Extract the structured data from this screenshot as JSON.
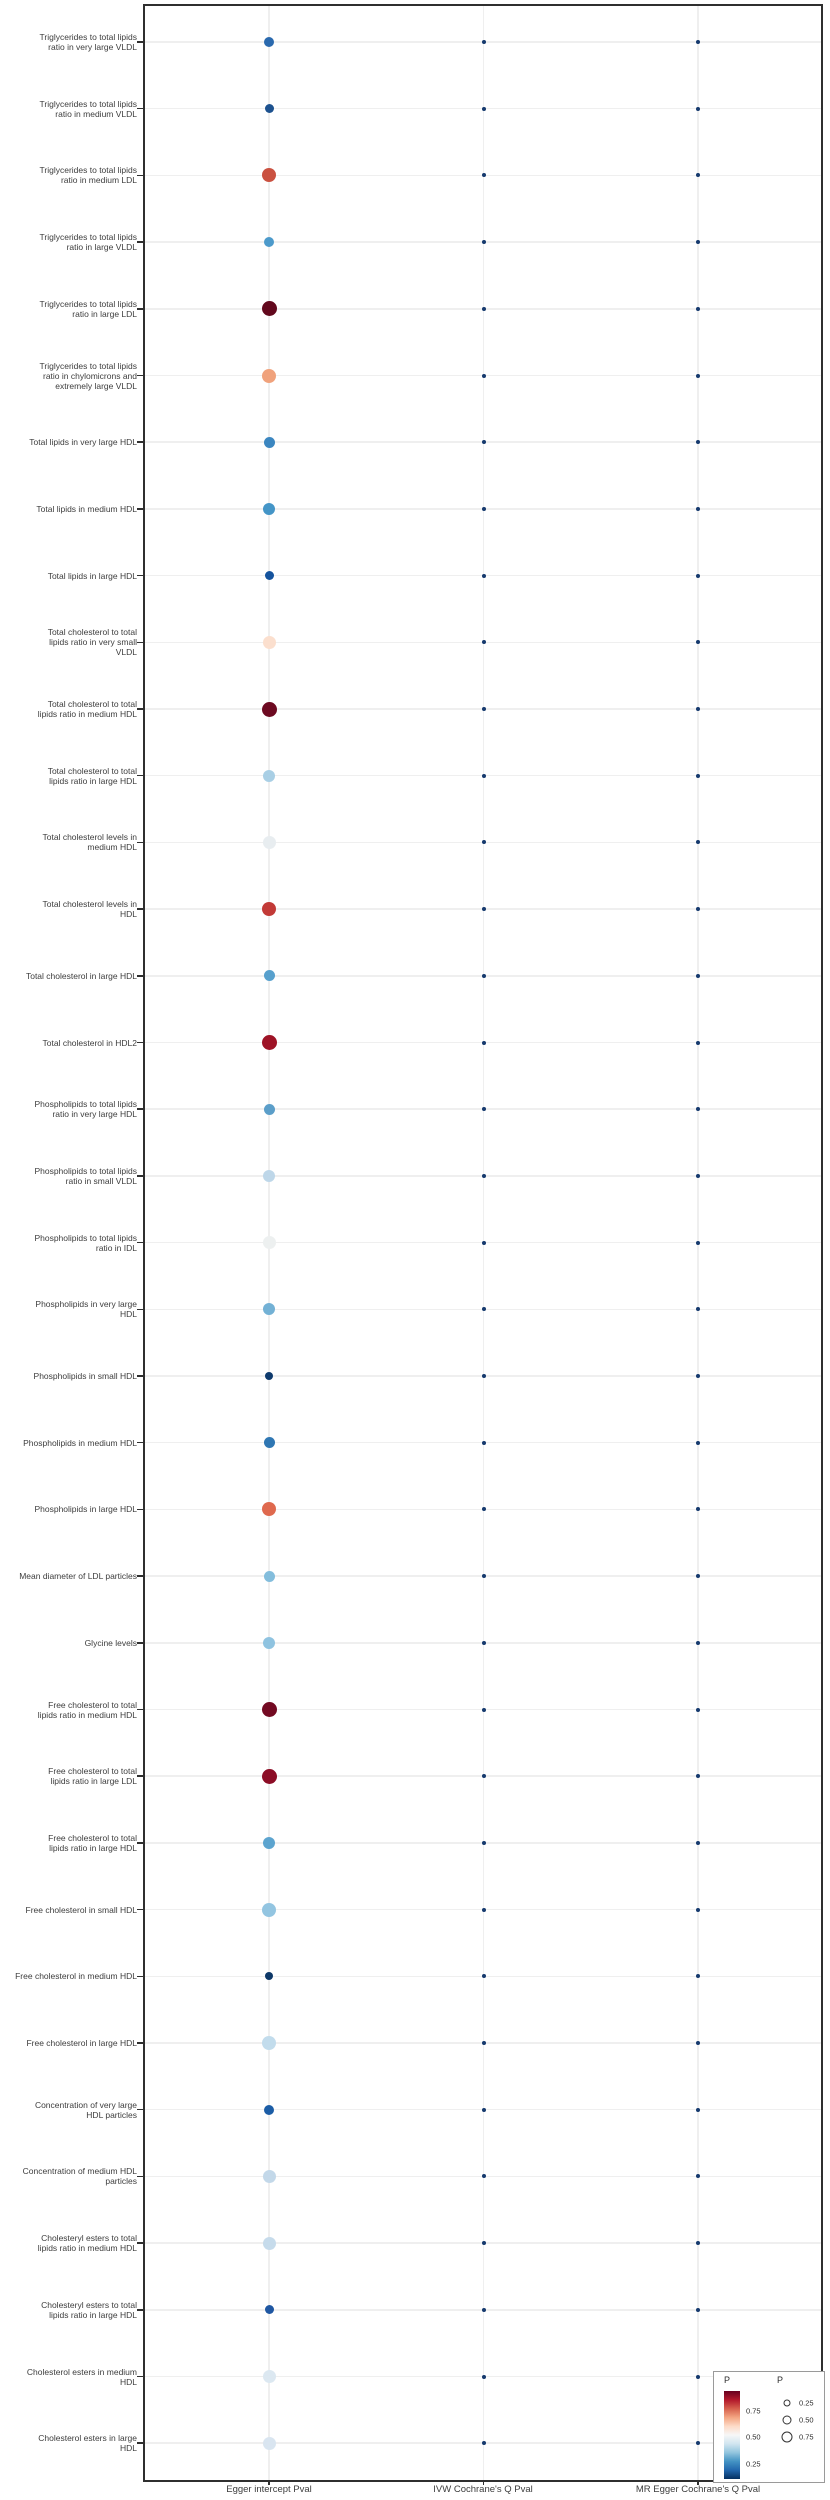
{
  "chart_data": {
    "type": "scatter",
    "subtype": "bubble-dot-matrix",
    "x_categories": [
      "Egger intercept Pval",
      "IVW Cochrane's Q Pval",
      "MR Egger Cochrane's Q Pval"
    ],
    "legend_color": {
      "title": "P",
      "ticks": [
        "0.75",
        "0.50",
        "0.25"
      ],
      "gradient_top_to_bottom": [
        "#67001f",
        "#b2182b",
        "#d6604d",
        "#f4a582",
        "#fddbc7",
        "#f7f7f7",
        "#d1e5f0",
        "#92c5de",
        "#4393c3",
        "#2166ac",
        "#053061"
      ]
    },
    "legend_size": {
      "title": "P",
      "entries": [
        "0.25",
        "0.50",
        "0.75"
      ]
    },
    "small_dot": {
      "color": "#163a6e",
      "size": 4
    },
    "rows": [
      {
        "label": "Triglycerides to total lipids\nratio in very large VLDL",
        "egger_intercept_p": 0.13,
        "ivw_q_p": 0.01,
        "mr_egger_q_p": 0.01,
        "color": "#2a69ae",
        "size": 10
      },
      {
        "label": "Triglycerides to total lipids\nratio in medium VLDL",
        "egger_intercept_p": 0.07,
        "ivw_q_p": 0.01,
        "mr_egger_q_p": 0.01,
        "color": "#1d528f",
        "size": 9
      },
      {
        "label": "Triglycerides to total lipids\nratio in medium LDL",
        "egger_intercept_p": 0.8,
        "ivw_q_p": 0.01,
        "mr_egger_q_p": 0.01,
        "color": "#ca5140",
        "size": 14
      },
      {
        "label": "Triglycerides to total lipids\nratio in large VLDL",
        "egger_intercept_p": 0.28,
        "ivw_q_p": 0.01,
        "mr_egger_q_p": 0.01,
        "color": "#4c9acb",
        "size": 10
      },
      {
        "label": "Triglycerides to total lipids\nratio in large LDL",
        "egger_intercept_p": 0.97,
        "ivw_q_p": 0.01,
        "mr_egger_q_p": 0.01,
        "color": "#62081d",
        "size": 15
      },
      {
        "label": "Triglycerides to total lipids\nratio in chylomicrons and\nextremely large VLDL",
        "egger_intercept_p": 0.7,
        "ivw_q_p": 0.01,
        "mr_egger_q_p": 0.01,
        "color": "#f0a27c",
        "size": 14
      },
      {
        "label": "Total lipids in very large HDL",
        "egger_intercept_p": 0.2,
        "ivw_q_p": 0.01,
        "mr_egger_q_p": 0.01,
        "color": "#3b86c0",
        "size": 11
      },
      {
        "label": "Total lipids in medium HDL",
        "egger_intercept_p": 0.24,
        "ivw_q_p": 0.01,
        "mr_egger_q_p": 0.01,
        "color": "#4495c7",
        "size": 12
      },
      {
        "label": "Total lipids in large HDL",
        "egger_intercept_p": 0.09,
        "ivw_q_p": 0.01,
        "mr_egger_q_p": 0.01,
        "color": "#15539d",
        "size": 9
      },
      {
        "label": "Total cholesterol to total\nlipids ratio in very small\nVLDL",
        "egger_intercept_p": 0.57,
        "ivw_q_p": 0.01,
        "mr_egger_q_p": 0.01,
        "color": "#fbdfce",
        "size": 13
      },
      {
        "label": "Total cholesterol to total\nlipids ratio in medium HDL",
        "egger_intercept_p": 0.96,
        "ivw_q_p": 0.01,
        "mr_egger_q_p": 0.01,
        "color": "#6d0a21",
        "size": 15
      },
      {
        "label": "Total cholesterol to total\nlipids ratio in large HDL",
        "egger_intercept_p": 0.33,
        "ivw_q_p": 0.01,
        "mr_egger_q_p": 0.01,
        "color": "#a9cfe5",
        "size": 12
      },
      {
        "label": "Total cholesterol levels in\nmedium HDL",
        "egger_intercept_p": 0.48,
        "ivw_q_p": 0.01,
        "mr_egger_q_p": 0.01,
        "color": "#e8edf0",
        "size": 13
      },
      {
        "label": "Total cholesterol levels in\nHDL",
        "egger_intercept_p": 0.85,
        "ivw_q_p": 0.01,
        "mr_egger_q_p": 0.01,
        "color": "#c23a37",
        "size": 14
      },
      {
        "label": "Total cholesterol in large HDL",
        "egger_intercept_p": 0.26,
        "ivw_q_p": 0.01,
        "mr_egger_q_p": 0.01,
        "color": "#57a0cd",
        "size": 11
      },
      {
        "label": "Total cholesterol in HDL2",
        "egger_intercept_p": 0.9,
        "ivw_q_p": 0.01,
        "mr_egger_q_p": 0.01,
        "color": "#9e1326",
        "size": 15
      },
      {
        "label": "Phospholipids to total lipids\nratio in very large HDL",
        "egger_intercept_p": 0.22,
        "ivw_q_p": 0.01,
        "mr_egger_q_p": 0.01,
        "color": "#5b9ec9",
        "size": 11
      },
      {
        "label": "Phospholipids to total lipids\nratio in small VLDL",
        "egger_intercept_p": 0.34,
        "ivw_q_p": 0.01,
        "mr_egger_q_p": 0.01,
        "color": "#bed7e9",
        "size": 12
      },
      {
        "label": "Phospholipids to total lipids\nratio in IDL",
        "egger_intercept_p": 0.49,
        "ivw_q_p": 0.01,
        "mr_egger_q_p": 0.01,
        "color": "#edf0f0",
        "size": 13
      },
      {
        "label": "Phospholipids in very large\nHDL",
        "egger_intercept_p": 0.3,
        "ivw_q_p": 0.01,
        "mr_egger_q_p": 0.01,
        "color": "#73b1d5",
        "size": 12
      },
      {
        "label": "Phospholipids in small HDL",
        "egger_intercept_p": 0.04,
        "ivw_q_p": 0.01,
        "mr_egger_q_p": 0.01,
        "color": "#0e3a6d",
        "size": 8
      },
      {
        "label": "Phospholipids in medium HDL",
        "egger_intercept_p": 0.18,
        "ivw_q_p": 0.01,
        "mr_egger_q_p": 0.01,
        "color": "#2f77b3",
        "size": 11
      },
      {
        "label": "Phospholipids in large HDL",
        "egger_intercept_p": 0.78,
        "ivw_q_p": 0.01,
        "mr_egger_q_p": 0.01,
        "color": "#df694e",
        "size": 14
      },
      {
        "label": "Mean diameter of LDL particles",
        "egger_intercept_p": 0.31,
        "ivw_q_p": 0.01,
        "mr_egger_q_p": 0.01,
        "color": "#83bddc",
        "size": 11
      },
      {
        "label": "Glycine levels",
        "egger_intercept_p": 0.32,
        "ivw_q_p": 0.01,
        "mr_egger_q_p": 0.01,
        "color": "#8fc3e0",
        "size": 12
      },
      {
        "label": "Free cholesterol to total\nlipids ratio in medium HDL",
        "egger_intercept_p": 0.95,
        "ivw_q_p": 0.01,
        "mr_egger_q_p": 0.01,
        "color": "#730a22",
        "size": 15
      },
      {
        "label": "Free cholesterol to total\nlipids ratio in large LDL",
        "egger_intercept_p": 0.92,
        "ivw_q_p": 0.01,
        "mr_egger_q_p": 0.01,
        "color": "#8c0d26",
        "size": 15
      },
      {
        "label": "Free cholesterol to total\nlipids ratio in large HDL",
        "egger_intercept_p": 0.27,
        "ivw_q_p": 0.01,
        "mr_egger_q_p": 0.01,
        "color": "#5ca4cf",
        "size": 12
      },
      {
        "label": "Free cholesterol in small HDL",
        "egger_intercept_p": 0.36,
        "ivw_q_p": 0.01,
        "mr_egger_q_p": 0.01,
        "color": "#93c5e1",
        "size": 14
      },
      {
        "label": "Free cholesterol in medium HDL",
        "egger_intercept_p": 0.04,
        "ivw_q_p": 0.01,
        "mr_egger_q_p": 0.01,
        "color": "#0d3868",
        "size": 8
      },
      {
        "label": "Free cholesterol in large HDL",
        "egger_intercept_p": 0.42,
        "ivw_q_p": 0.01,
        "mr_egger_q_p": 0.01,
        "color": "#c2dcec",
        "size": 14
      },
      {
        "label": "Concentration of very large\nHDL particles",
        "egger_intercept_p": 0.12,
        "ivw_q_p": 0.01,
        "mr_egger_q_p": 0.01,
        "color": "#1c5da6",
        "size": 10
      },
      {
        "label": "Concentration of medium HDL\nparticles",
        "egger_intercept_p": 0.34,
        "ivw_q_p": 0.01,
        "mr_egger_q_p": 0.01,
        "color": "#c3d8e9",
        "size": 13
      },
      {
        "label": "Cholesteryl esters to total\nlipids ratio in medium HDL",
        "egger_intercept_p": 0.35,
        "ivw_q_p": 0.01,
        "mr_egger_q_p": 0.01,
        "color": "#c6dbeb",
        "size": 13
      },
      {
        "label": "Cholesteryl esters to total\nlipids ratio in large HDL",
        "egger_intercept_p": 0.07,
        "ivw_q_p": 0.01,
        "mr_egger_q_p": 0.01,
        "color": "#1f57a2",
        "size": 9
      },
      {
        "label": "Cholesterol esters in medium\nHDL",
        "egger_intercept_p": 0.44,
        "ivw_q_p": 0.01,
        "mr_egger_q_p": 0.01,
        "color": "#dce8f1",
        "size": 13
      },
      {
        "label": "Cholesterol esters in large\nHDL",
        "egger_intercept_p": 0.43,
        "ivw_q_p": 0.01,
        "mr_egger_q_p": 0.01,
        "color": "#d9e5f0",
        "size": 13
      }
    ]
  }
}
